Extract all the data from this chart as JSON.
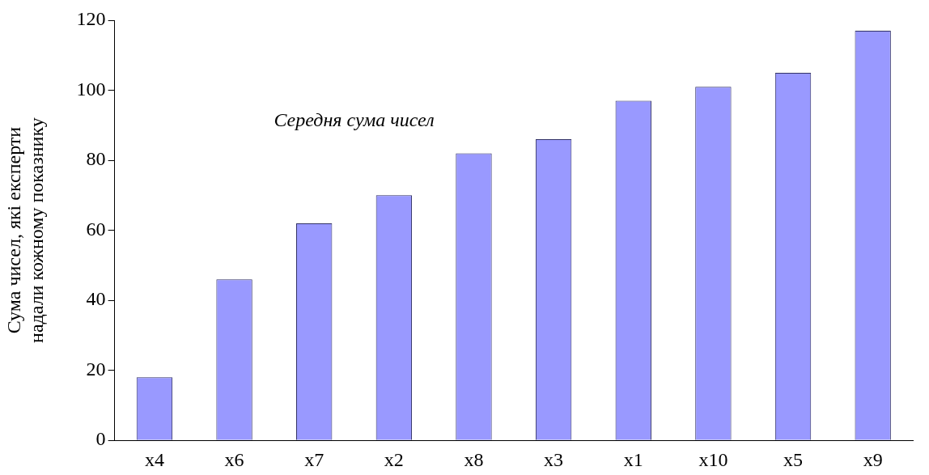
{
  "chart_data": {
    "type": "bar",
    "categories": [
      "x4",
      "x6",
      "x7",
      "x2",
      "x8",
      "x3",
      "x1",
      "x10",
      "x5",
      "x9"
    ],
    "values": [
      18,
      46,
      62,
      70,
      82,
      86,
      97,
      101,
      105,
      117
    ],
    "color": "#9999ff",
    "ylabel": "Сума чисел, які експерти\nнадали кожному показнику",
    "ylim": [
      0,
      120
    ],
    "yticks": [
      0,
      20,
      40,
      60,
      80,
      100,
      120
    ],
    "grid": false,
    "legend": false,
    "annotations": [
      "Середня сума чисел"
    ]
  }
}
